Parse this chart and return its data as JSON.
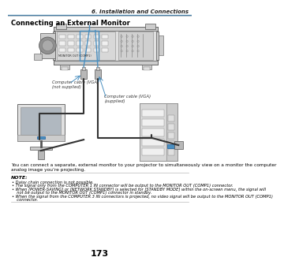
{
  "page_number": "173",
  "header_right": "6. Installation and Connections",
  "section_title": "Connecting an External Monitor",
  "header_line_color": "#4a90d9",
  "body_text": "You can connect a separate, external monitor to your projector to simultaneously view on a monitor the computer\nanalog image you’re projecting.",
  "note_title": "NOTE:",
  "notes": [
    "Daisy chain connection is not possible.",
    "The signal only from the COMPUTER 1 IN connector will be output to the MONITOR OUT (COMP1) connector.",
    "When [POWER-SAVING] or [NETWORK STANDBY] is selected for [STANDBY MODE] within the on-screen menu, the signal will\nnot be output to the MONITOR OUT (COMP1) connector in standby.",
    "When the signal from the COMPUTER 3 IN connectors is projected, no video signal will be output to the MONITOR OUT (COMP1)\nconnector."
  ],
  "bg_color": "#ffffff",
  "text_color": "#000000",
  "note_line_color": "#aaaaaa",
  "cable_label_left": "Computer cable (VGA)\n(not supplied)",
  "cable_label_right": "Computer cable (VGA)\n(supplied)",
  "blue": "#4a8fc0",
  "gray_dark": "#555555",
  "gray_med": "#888888",
  "gray_light": "#cccccc",
  "gray_lighter": "#e0e0e0",
  "gray_lightest": "#f0f0f0"
}
